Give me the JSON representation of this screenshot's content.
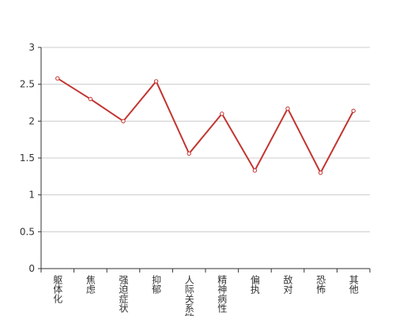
{
  "chart_data": {
    "type": "line",
    "categories": [
      "躯体化",
      "焦虑",
      "强迫症状",
      "抑郁",
      "人际关系敏感",
      "精神病性",
      "偏执",
      "敌对",
      "恐怖",
      "其他"
    ],
    "values": [
      2.58,
      2.3,
      2.0,
      2.54,
      1.56,
      2.1,
      1.33,
      2.17,
      1.3,
      2.14
    ],
    "color": "#c23531",
    "ylim": [
      0,
      3
    ],
    "yticks": [
      0,
      0.5,
      1,
      1.5,
      2,
      2.5,
      3
    ],
    "grid": true
  }
}
